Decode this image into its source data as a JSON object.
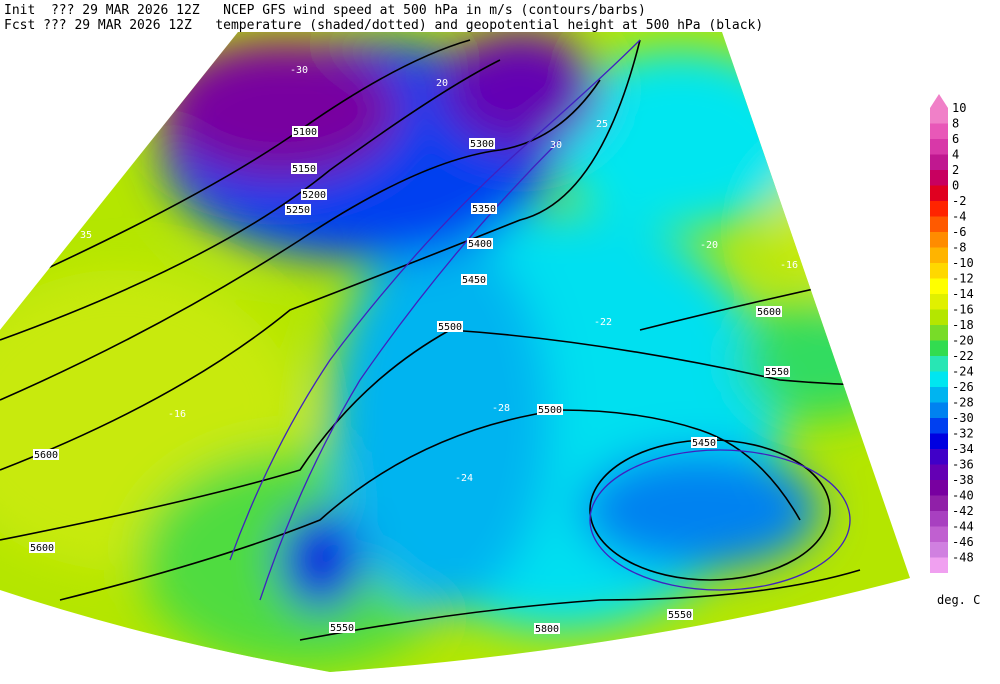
{
  "header": {
    "line1": "Init  ??? 29 MAR 2026 12Z   NCEP GFS wind speed at 500 hPa in m/s (contours/barbs)",
    "line2": "Fcst ??? 29 MAR 2026 12Z   temperature (shaded/dotted) and geopotential height at 500 hPa (black)"
  },
  "colorbar": {
    "values": [
      10,
      8,
      6,
      4,
      2,
      0,
      -2,
      -4,
      -6,
      -8,
      -10,
      -12,
      -14,
      -16,
      -18,
      -20,
      -22,
      -24,
      -26,
      -28,
      -30,
      -32,
      -34,
      -36,
      -38,
      -40,
      -42,
      -44,
      -46,
      -48
    ],
    "colors": [
      "#f080c8",
      "#e858b8",
      "#d838a8",
      "#c01890",
      "#c80060",
      "#e00020",
      "#ff2400",
      "#ff5a00",
      "#ff8c00",
      "#ffb400",
      "#ffd800",
      "#ffff00",
      "#e0f000",
      "#b4e600",
      "#78dc28",
      "#32dc50",
      "#28e6b4",
      "#00e6f0",
      "#00b4f0",
      "#0082f0",
      "#0040f0",
      "#0000e0",
      "#4000c8",
      "#6400b4",
      "#7800a0",
      "#9020a8",
      "#a840c0",
      "#c060d0",
      "#d080e0",
      "#f0a0f0"
    ],
    "unit": "deg. C"
  },
  "map_labels": [
    "5100",
    "5150",
    "5200",
    "5250",
    "5300",
    "5350",
    "5400",
    "5450",
    "5500",
    "5500",
    "5450",
    "5550",
    "5600",
    "5600",
    "5600",
    "5550",
    "5550",
    "5800",
    "-20",
    "-16",
    "-24",
    "-28",
    "-30",
    "-22",
    "-16",
    "20",
    "25",
    "30",
    "35"
  ]
}
